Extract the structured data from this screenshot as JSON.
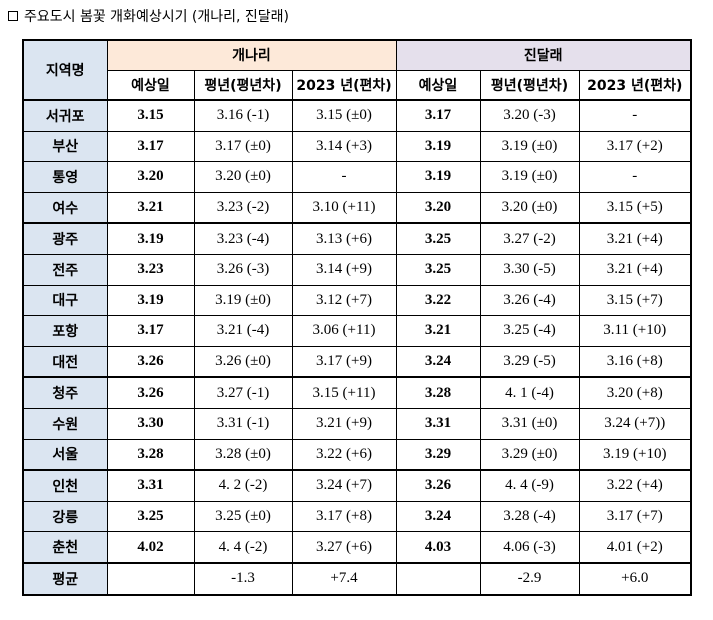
{
  "title": "주요도시 봄꽃 개화예상시기 (개나리, 진달래)",
  "header": {
    "region": "지역명",
    "gaenari": "개나리",
    "jindallae": "진달래",
    "col_expected": "예상일",
    "col_normal": "평년(평년차)",
    "col_2023": "2023 년(편차)"
  },
  "rows": [
    {
      "region": "서귀포",
      "g_exp": "3.15",
      "g_norm": "3.16 (-1)",
      "g_2023": "3.15 (±0)",
      "j_exp": "3.17",
      "j_norm": "3.20 (-3)",
      "j_2023": "-"
    },
    {
      "region": "부산",
      "g_exp": "3.17",
      "g_norm": "3.17 (±0)",
      "g_2023": "3.14 (+3)",
      "j_exp": "3.19",
      "j_norm": "3.19 (±0)",
      "j_2023": "3.17 (+2)"
    },
    {
      "region": "통영",
      "g_exp": "3.20",
      "g_norm": "3.20 (±0)",
      "g_2023": "-",
      "j_exp": "3.19",
      "j_norm": "3.19 (±0)",
      "j_2023": "-"
    },
    {
      "region": "여수",
      "g_exp": "3.21",
      "g_norm": "3.23 (-2)",
      "g_2023": "3.10 (+11)",
      "j_exp": "3.20",
      "j_norm": "3.20 (±0)",
      "j_2023": "3.15 (+5)"
    },
    {
      "region": "광주",
      "g_exp": "3.19",
      "g_norm": "3.23 (-4)",
      "g_2023": "3.13 (+6)",
      "j_exp": "3.25",
      "j_norm": "3.27 (-2)",
      "j_2023": "3.21 (+4)"
    },
    {
      "region": "전주",
      "g_exp": "3.23",
      "g_norm": "3.26 (-3)",
      "g_2023": "3.14 (+9)",
      "j_exp": "3.25",
      "j_norm": "3.30 (-5)",
      "j_2023": "3.21 (+4)"
    },
    {
      "region": "대구",
      "g_exp": "3.19",
      "g_norm": "3.19 (±0)",
      "g_2023": "3.12 (+7)",
      "j_exp": "3.22",
      "j_norm": "3.26 (-4)",
      "j_2023": "3.15 (+7)"
    },
    {
      "region": "포항",
      "g_exp": "3.17",
      "g_norm": "3.21 (-4)",
      "g_2023": "3.06 (+11)",
      "j_exp": "3.21",
      "j_norm": "3.25 (-4)",
      "j_2023": "3.11 (+10)"
    },
    {
      "region": "대전",
      "g_exp": "3.26",
      "g_norm": "3.26 (±0)",
      "g_2023": "3.17 (+9)",
      "j_exp": "3.24",
      "j_norm": "3.29 (-5)",
      "j_2023": "3.16 (+8)"
    },
    {
      "region": "청주",
      "g_exp": "3.26",
      "g_norm": "3.27 (-1)",
      "g_2023": "3.15 (+11)",
      "j_exp": "3.28",
      "j_norm": "4. 1 (-4)",
      "j_2023": "3.20 (+8)"
    },
    {
      "region": "수원",
      "g_exp": "3.30",
      "g_norm": "3.31 (-1)",
      "g_2023": "3.21 (+9)",
      "j_exp": "3.31",
      "j_norm": "3.31 (±0)",
      "j_2023": "3.24 (+7))"
    },
    {
      "region": "서울",
      "g_exp": "3.28",
      "g_norm": "3.28 (±0)",
      "g_2023": "3.22 (+6)",
      "j_exp": "3.29",
      "j_norm": "3.29 (±0)",
      "j_2023": "3.19 (+10)"
    },
    {
      "region": "인천",
      "g_exp": "3.31",
      "g_norm": "4. 2 (-2)",
      "g_2023": "3.24 (+7)",
      "j_exp": "3.26",
      "j_norm": "4. 4 (-9)",
      "j_2023": "3.22 (+4)"
    },
    {
      "region": "강릉",
      "g_exp": "3.25",
      "g_norm": "3.25 (±0)",
      "g_2023": "3.17 (+8)",
      "j_exp": "3.24",
      "j_norm": "3.28 (-4)",
      "j_2023": "3.17 (+7)"
    },
    {
      "region": "춘천",
      "g_exp": "4.02",
      "g_norm": "4. 4 (-2)",
      "g_2023": "3.27 (+6)",
      "j_exp": "4.03",
      "j_norm": "4.06 (-3)",
      "j_2023": "4.01 (+2)"
    }
  ],
  "average": {
    "region": "평균",
    "g_exp": "",
    "g_norm": "-1.3",
    "g_2023": "+7.4",
    "j_exp": "",
    "j_norm": "-2.9",
    "j_2023": "+6.0"
  }
}
